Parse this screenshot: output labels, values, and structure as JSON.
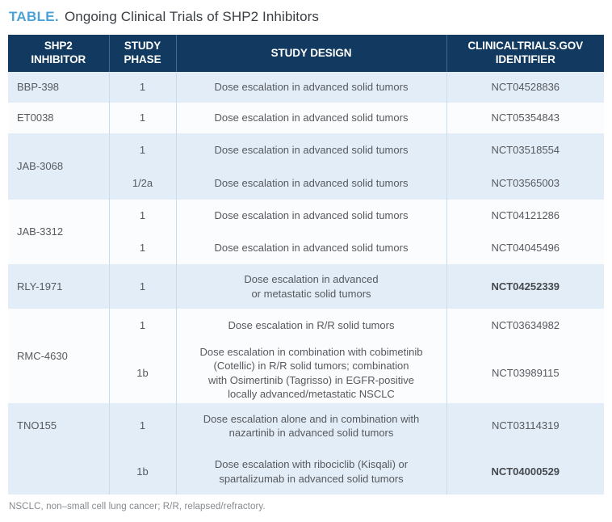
{
  "title": {
    "label": "TABLE.",
    "text": "Ongoing Clinical Trials of SHP2 Inhibitors"
  },
  "colors": {
    "accent_blue": "#4aa2d8",
    "header_bg": "#12395f",
    "row_blue": "#e3edf7",
    "row_white": "#fbfcfd",
    "body_text": "#56595e"
  },
  "table": {
    "headers": [
      "SHP2\nINHIBITOR",
      "STUDY\nPHASE",
      "STUDY DESIGN",
      "CLINICALTRIALS.GOV\nIDENTIFIER"
    ],
    "groups": [
      {
        "inhibitor": "BBP-398",
        "rows": [
          {
            "phase": "1",
            "design": "Dose escalation in advanced solid tumors",
            "id": "NCT04528836"
          }
        ]
      },
      {
        "inhibitor": "ET0038",
        "rows": [
          {
            "phase": "1",
            "design": "Dose escalation in advanced solid tumors",
            "id": "NCT05354843"
          }
        ]
      },
      {
        "inhibitor": "JAB-3068",
        "rows": [
          {
            "phase": "1",
            "design": "Dose escalation in advanced solid tumors",
            "id": "NCT03518554"
          },
          {
            "phase": "1/2a",
            "design": "Dose escalation in advanced solid tumors",
            "id": "NCT03565003"
          }
        ]
      },
      {
        "inhibitor": "JAB-3312",
        "rows": [
          {
            "phase": "1",
            "design": "Dose escalation in advanced solid tumors",
            "id": "NCT04121286"
          },
          {
            "phase": "1",
            "design": "Dose escalation in advanced solid tumors",
            "id": "NCT04045496"
          }
        ]
      },
      {
        "inhibitor": "RLY-1971",
        "rows": [
          {
            "phase": "1",
            "design": "Dose escalation in advanced\nor metastatic solid tumors",
            "id": "NCT04252339"
          }
        ]
      },
      {
        "inhibitor": "RMC-4630",
        "rows": [
          {
            "phase": "1",
            "design": "Dose escalation in R/R solid tumors",
            "id": "NCT03634982"
          },
          {
            "phase": "1b",
            "design": "Dose escalation in combination with cobimetinib\n(Cotellic) in R/R solid tumors; combination\nwith Osimertinib (Tagrisso) in EGFR-positive\nlocally advanced/metastatic NSCLC",
            "id": "NCT03989115"
          }
        ]
      },
      {
        "inhibitor": "TNO155",
        "rows": [
          {
            "phase": "1",
            "design": "Dose escalation alone and in combination with\nnazartinib in advanced solid tumors",
            "id": "NCT03114319"
          },
          {
            "phase": "1b",
            "design": "Dose escalation with ribociclib (Kisqali) or\nspartalizumab in advanced solid tumors",
            "id": "NCT04000529"
          }
        ]
      }
    ]
  },
  "footnote": "NSCLC, non–small cell lung cancer; R/R, relapsed/refractory."
}
